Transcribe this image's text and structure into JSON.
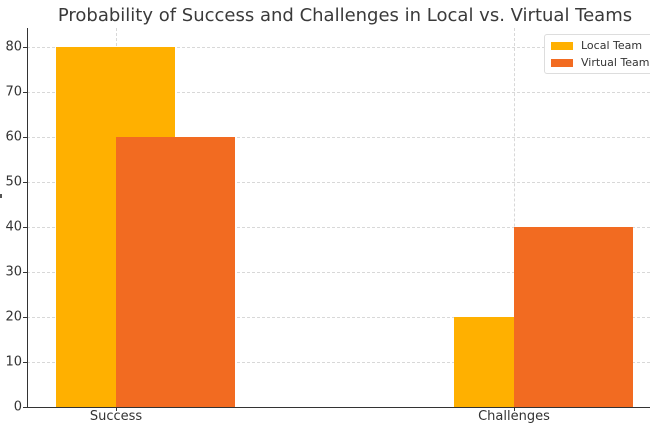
{
  "chart_data": {
    "type": "bar",
    "title": "Probability of Success and Challenges in Local vs. Virtual Teams",
    "xlabel": "",
    "ylabel": "",
    "categories": [
      "Success",
      "Challenges"
    ],
    "series": [
      {
        "name": "Local Team",
        "values": [
          80,
          20
        ],
        "color": "#FFB000"
      },
      {
        "name": "Virtual Team",
        "values": [
          60,
          40
        ],
        "color": "#F26B21"
      }
    ],
    "ylim": [
      0,
      84
    ],
    "yticks": [
      0,
      10,
      20,
      30,
      40,
      50,
      60,
      70,
      80
    ],
    "grid": true,
    "legend_position": "upper right"
  },
  "labels": {
    "title": "Probability of Success and Challenges in Local vs. Virtual Teams",
    "yticks": [
      "0",
      "10",
      "20",
      "30",
      "40",
      "50",
      "60",
      "70",
      "80"
    ],
    "categories": [
      "Success",
      "Challenges"
    ],
    "legend": [
      "Local Team",
      "Virtual Team"
    ]
  }
}
